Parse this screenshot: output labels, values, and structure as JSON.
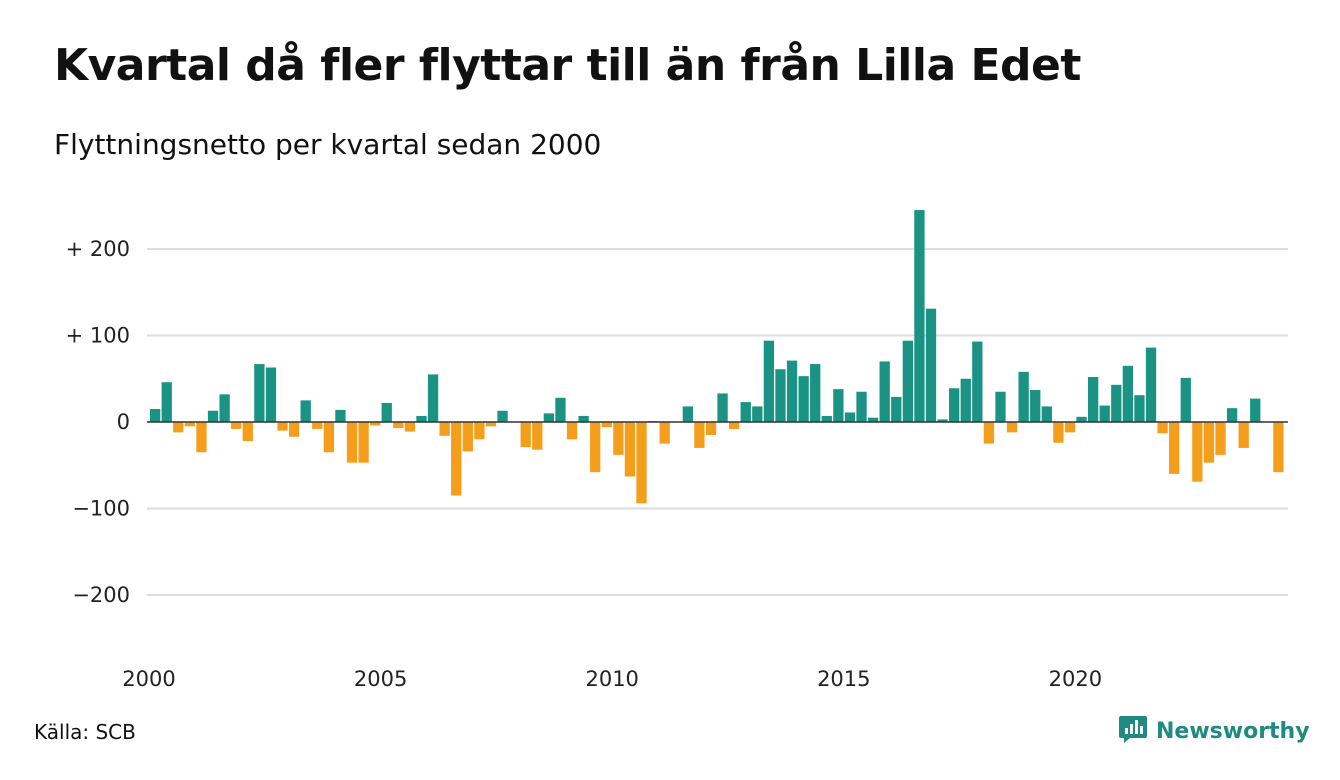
{
  "title": "Kvartal då fler flyttar till än från Lilla Edet",
  "subtitle": "Flyttningsnetto per kvartal sedan 2000",
  "source": "Källa: SCB",
  "brand": {
    "name": "Newsworthy",
    "icon": "newsworthy-logo-icon",
    "color": "#1f8a80"
  },
  "colors": {
    "positive": "#1a9384",
    "negative": "#f59e1c",
    "grid": "#dddddd",
    "zero_line": "#333333"
  },
  "chart_data": {
    "type": "bar",
    "title": "Kvartal då fler flyttar till än från Lilla Edet",
    "subtitle": "Flyttningsnetto per kvartal sedan 2000",
    "xlabel": "",
    "ylabel": "",
    "x_start_year": 2000,
    "x_ticks": [
      "2000",
      "2005",
      "2010",
      "2015",
      "2020"
    ],
    "y_ticks": [
      {
        "value": 200,
        "label": "+ 200"
      },
      {
        "value": 100,
        "label": "+ 100"
      },
      {
        "value": 0,
        "label": "0"
      },
      {
        "value": -100,
        "label": "−100"
      },
      {
        "value": -200,
        "label": "−200"
      }
    ],
    "ylim": [
      -250,
      250
    ],
    "grid": true,
    "legend": "none",
    "values": [
      15,
      46,
      -12,
      -5,
      -35,
      13,
      32,
      -8,
      -22,
      67,
      63,
      -10,
      -17,
      25,
      -8,
      -35,
      14,
      -47,
      -47,
      -4,
      22,
      -7,
      -11,
      7,
      55,
      -16,
      -85,
      -34,
      -20,
      -5,
      13,
      0,
      -29,
      -32,
      10,
      28,
      -20,
      7,
      -58,
      -6,
      -38,
      -63,
      -94,
      1,
      -25,
      0,
      18,
      -30,
      -15,
      33,
      -8,
      23,
      18,
      94,
      61,
      71,
      53,
      67,
      7,
      38,
      11,
      35,
      5,
      70,
      29,
      94,
      245,
      131,
      3,
      39,
      50,
      93,
      -25,
      35,
      -12,
      58,
      37,
      18,
      -24,
      -12,
      6,
      52,
      19,
      43,
      65,
      31,
      86,
      -13,
      -60,
      51,
      -69,
      -47,
      -38,
      16,
      -30,
      27,
      0,
      -58
    ]
  }
}
